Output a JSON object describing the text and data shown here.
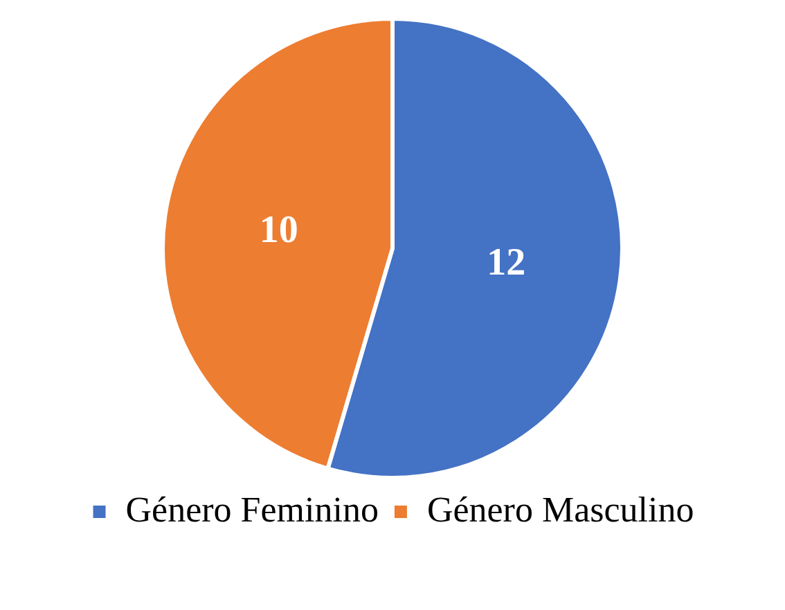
{
  "chart_data": {
    "type": "pie",
    "categories": [
      "Género Feminino",
      "Género Masculino"
    ],
    "values": [
      12,
      10
    ],
    "colors": [
      "#4472c4",
      "#ed7d31"
    ],
    "data_labels": true,
    "legend": "bottom"
  }
}
